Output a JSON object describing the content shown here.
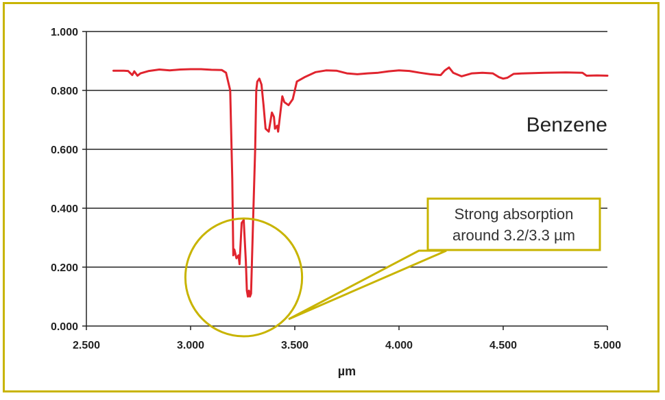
{
  "chart_data": {
    "type": "line",
    "xlabel": "µm",
    "ylabel": "",
    "xlim": [
      2.5,
      5.0
    ],
    "ylim": [
      0.0,
      1.0
    ],
    "x_ticks": [
      2.5,
      3.0,
      3.5,
      4.0,
      4.5,
      5.0
    ],
    "y_ticks": [
      0.0,
      0.2,
      0.4,
      0.6,
      0.8,
      1.0
    ],
    "x_tick_labels": [
      "2.500",
      "3.000",
      "3.500",
      "4.000",
      "4.500",
      "5.000"
    ],
    "y_tick_labels": [
      "0.000",
      "0.200",
      "0.400",
      "0.600",
      "0.800",
      "1.000"
    ],
    "grid": "horizontal",
    "series": [
      {
        "name": "Benzene",
        "color": "#e0242e",
        "points": [
          [
            2.63,
            0.867
          ],
          [
            2.68,
            0.867
          ],
          [
            2.7,
            0.866
          ],
          [
            2.72,
            0.852
          ],
          [
            2.73,
            0.865
          ],
          [
            2.745,
            0.85
          ],
          [
            2.76,
            0.858
          ],
          [
            2.8,
            0.866
          ],
          [
            2.85,
            0.871
          ],
          [
            2.9,
            0.868
          ],
          [
            2.95,
            0.871
          ],
          [
            3.0,
            0.872
          ],
          [
            3.05,
            0.872
          ],
          [
            3.1,
            0.87
          ],
          [
            3.15,
            0.869
          ],
          [
            3.17,
            0.86
          ],
          [
            3.19,
            0.8
          ],
          [
            3.2,
            0.5
          ],
          [
            3.205,
            0.24
          ],
          [
            3.21,
            0.26
          ],
          [
            3.22,
            0.23
          ],
          [
            3.23,
            0.24
          ],
          [
            3.235,
            0.21
          ],
          [
            3.245,
            0.35
          ],
          [
            3.255,
            0.36
          ],
          [
            3.265,
            0.22
          ],
          [
            3.27,
            0.12
          ],
          [
            3.275,
            0.1
          ],
          [
            3.28,
            0.12
          ],
          [
            3.285,
            0.1
          ],
          [
            3.29,
            0.11
          ],
          [
            3.3,
            0.36
          ],
          [
            3.31,
            0.6
          ],
          [
            3.315,
            0.8
          ],
          [
            3.32,
            0.83
          ],
          [
            3.33,
            0.84
          ],
          [
            3.34,
            0.82
          ],
          [
            3.35,
            0.75
          ],
          [
            3.36,
            0.67
          ],
          [
            3.375,
            0.66
          ],
          [
            3.39,
            0.725
          ],
          [
            3.4,
            0.71
          ],
          [
            3.405,
            0.67
          ],
          [
            3.415,
            0.68
          ],
          [
            3.42,
            0.66
          ],
          [
            3.44,
            0.78
          ],
          [
            3.45,
            0.76
          ],
          [
            3.47,
            0.75
          ],
          [
            3.49,
            0.77
          ],
          [
            3.51,
            0.83
          ],
          [
            3.55,
            0.846
          ],
          [
            3.6,
            0.862
          ],
          [
            3.65,
            0.868
          ],
          [
            3.7,
            0.867
          ],
          [
            3.75,
            0.858
          ],
          [
            3.8,
            0.855
          ],
          [
            3.85,
            0.858
          ],
          [
            3.9,
            0.86
          ],
          [
            3.95,
            0.865
          ],
          [
            4.0,
            0.868
          ],
          [
            4.05,
            0.866
          ],
          [
            4.1,
            0.86
          ],
          [
            4.15,
            0.855
          ],
          [
            4.2,
            0.852
          ],
          [
            4.22,
            0.868
          ],
          [
            4.24,
            0.878
          ],
          [
            4.26,
            0.86
          ],
          [
            4.3,
            0.848
          ],
          [
            4.35,
            0.858
          ],
          [
            4.4,
            0.86
          ],
          [
            4.45,
            0.858
          ],
          [
            4.48,
            0.845
          ],
          [
            4.5,
            0.84
          ],
          [
            4.52,
            0.843
          ],
          [
            4.55,
            0.856
          ],
          [
            4.6,
            0.858
          ],
          [
            4.7,
            0.86
          ],
          [
            4.8,
            0.861
          ],
          [
            4.88,
            0.86
          ],
          [
            4.9,
            0.85
          ],
          [
            4.95,
            0.851
          ],
          [
            5.0,
            0.85
          ]
        ]
      }
    ],
    "series_label": "Benzene",
    "annotation": {
      "text_lines": [
        "Strong absorption",
        "around 3.2/3.3 µm"
      ],
      "target_x": 3.255,
      "target_y": 0.165,
      "highlight_rx": 0.28,
      "highlight_ry": 0.2,
      "color": "#c8b400"
    }
  }
}
